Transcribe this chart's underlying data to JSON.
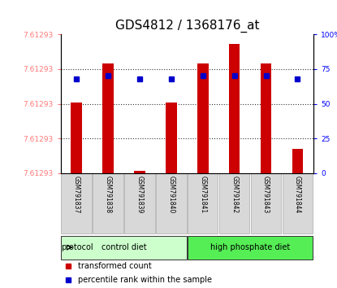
{
  "title": "GDS4812 / 1368176_at",
  "samples": [
    "GSM791837",
    "GSM791838",
    "GSM791839",
    "GSM791840",
    "GSM791841",
    "GSM791842",
    "GSM791843",
    "GSM791844"
  ],
  "transformed_counts": [
    7.61515,
    7.6164,
    7.613,
    7.61515,
    7.6164,
    7.617,
    7.6164,
    7.6137
  ],
  "percentile_ranks": [
    68,
    70,
    68,
    68,
    70,
    70,
    70,
    68
  ],
  "groups": [
    "control diet",
    "control diet",
    "control diet",
    "control diet",
    "high phosphate diet",
    "high phosphate diet",
    "high phosphate diet",
    "high phosphate diet"
  ],
  "bar_color": "#cc0000",
  "percentile_color": "#0000cc",
  "ylim_min": 7.61293,
  "ylim_max": 7.6173,
  "right_yticks": [
    0,
    25,
    50,
    75,
    100
  ],
  "title_fontsize": 11,
  "ylabel_color": "#ff7777",
  "legend_items": [
    "transformed count",
    "percentile rank within the sample"
  ],
  "legend_colors": [
    "#cc0000",
    "#0000cc"
  ],
  "group_colors": {
    "control diet": "#ccffcc",
    "high phosphate diet": "#55ee55"
  },
  "ytick_label": "7.61293"
}
